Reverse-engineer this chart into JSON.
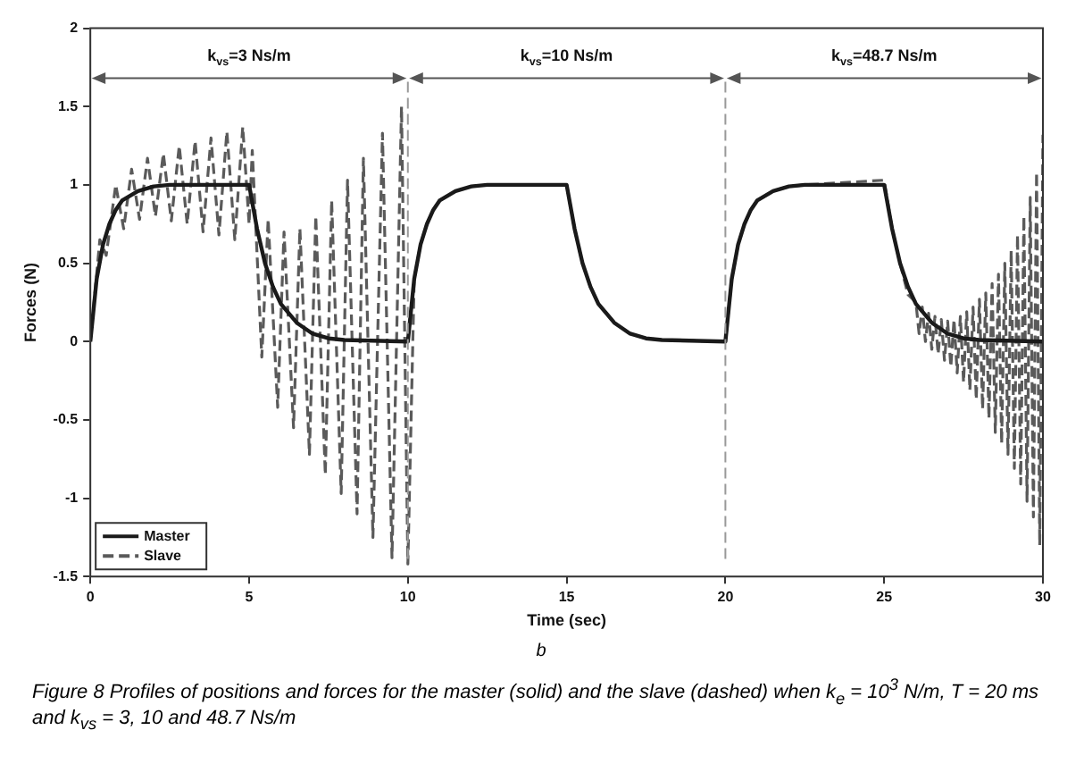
{
  "chart_data": {
    "type": "line",
    "xlabel": "Time (sec)",
    "ylabel": "Forces (N)",
    "xlim": [
      0,
      30
    ],
    "xticks": [
      0,
      5,
      10,
      15,
      20,
      25,
      30
    ],
    "ylim": [
      -1.5,
      2
    ],
    "yticks": [
      -1.5,
      -1,
      -0.5,
      0,
      0.5,
      1,
      1.5,
      2
    ],
    "grid": false,
    "legend": "bottom left",
    "marker": "none",
    "series": [
      {
        "name": "Master",
        "color": "#1a1a1a",
        "line_style": "solid",
        "x": [
          0,
          0.2,
          0.4,
          0.6,
          0.8,
          1,
          1.5,
          2,
          2.5,
          5,
          5.25,
          5.5,
          5.75,
          6,
          6.5,
          7,
          7.5,
          8,
          10,
          10.2,
          10.4,
          10.6,
          10.8,
          11,
          11.5,
          12,
          12.5,
          15,
          15.25,
          15.5,
          15.75,
          16,
          16.5,
          17,
          17.5,
          18,
          20,
          20.2,
          20.4,
          20.6,
          20.8,
          21,
          21.5,
          22,
          22.5,
          25,
          25.25,
          25.5,
          25.75,
          26,
          26.5,
          27,
          27.5,
          28,
          30
        ],
        "values": [
          0,
          0.4,
          0.62,
          0.75,
          0.84,
          0.9,
          0.96,
          0.99,
          1,
          1,
          0.72,
          0.5,
          0.35,
          0.24,
          0.12,
          0.05,
          0.02,
          0.01,
          0,
          0.4,
          0.62,
          0.75,
          0.84,
          0.9,
          0.96,
          0.99,
          1,
          1,
          0.72,
          0.5,
          0.35,
          0.24,
          0.12,
          0.05,
          0.02,
          0.01,
          0,
          0.4,
          0.62,
          0.75,
          0.84,
          0.9,
          0.96,
          0.99,
          1,
          1,
          0.72,
          0.5,
          0.35,
          0.24,
          0.12,
          0.05,
          0.02,
          0.01,
          0
        ]
      },
      {
        "name": "Slave",
        "color": "#5a5a5a",
        "line_style": "dashed",
        "x": [
          0,
          0.3,
          0.5,
          0.8,
          1.05,
          1.3,
          1.55,
          1.8,
          2.05,
          2.3,
          2.55,
          2.8,
          3.05,
          3.3,
          3.55,
          3.8,
          4.05,
          4.3,
          4.55,
          4.8,
          5,
          5.1,
          5.4,
          5.6,
          5.9,
          6.1,
          6.4,
          6.6,
          6.9,
          7.1,
          7.4,
          7.6,
          7.9,
          8.1,
          8.4,
          8.6,
          8.9,
          9.2,
          9.5,
          9.8,
          10,
          10.2,
          10.4,
          10.6,
          10.8,
          11,
          11.5,
          12,
          12.5,
          15,
          15.25,
          15.5,
          15.75,
          16,
          16.5,
          17,
          17.5,
          18,
          20,
          20.2,
          20.4,
          20.6,
          20.8,
          21,
          21.5,
          22,
          22.5,
          25,
          25.25,
          25.5,
          25.75,
          26,
          26.1,
          26.2,
          26.3,
          26.4,
          26.5,
          26.6,
          26.7,
          26.8,
          26.9,
          27,
          27.1,
          27.2,
          27.3,
          27.4,
          27.5,
          27.6,
          27.7,
          27.8,
          27.9,
          28,
          28.1,
          28.2,
          28.3,
          28.4,
          28.5,
          28.6,
          28.7,
          28.8,
          28.9,
          29,
          29.1,
          29.2,
          29.3,
          29.4,
          29.5,
          29.6,
          29.7,
          29.8,
          29.9,
          30
        ],
        "values": [
          0,
          0.65,
          0.55,
          1,
          0.72,
          1.1,
          0.78,
          1.17,
          0.8,
          1.2,
          0.77,
          1.25,
          0.75,
          1.28,
          0.7,
          1.3,
          0.68,
          1.34,
          0.65,
          1.37,
          0.75,
          1.22,
          -0.1,
          0.78,
          -0.42,
          0.7,
          -0.55,
          0.72,
          -0.72,
          0.8,
          -0.85,
          0.9,
          -0.97,
          1.03,
          -1.1,
          1.17,
          -1.25,
          1.33,
          -1.38,
          1.5,
          -1.42,
          0.4,
          0.62,
          0.75,
          0.84,
          0.9,
          0.96,
          0.99,
          1,
          1,
          0.72,
          0.5,
          0.35,
          0.24,
          0.12,
          0.05,
          0.02,
          0.01,
          0,
          0.4,
          0.62,
          0.75,
          0.84,
          0.9,
          0.96,
          0.99,
          1,
          1.03,
          0.72,
          0.5,
          0.3,
          0.25,
          0.05,
          0.22,
          0,
          0.18,
          -0.05,
          0.16,
          -0.08,
          0.14,
          -0.12,
          0.13,
          -0.16,
          0.14,
          -0.2,
          0.16,
          -0.26,
          0.19,
          -0.31,
          0.22,
          -0.37,
          0.27,
          -0.43,
          0.31,
          -0.49,
          0.37,
          -0.58,
          0.43,
          -0.65,
          0.5,
          -0.72,
          0.58,
          -0.81,
          0.68,
          -0.91,
          0.8,
          -1.02,
          0.92,
          -1.12,
          1.08,
          -1.3,
          1.32
        ]
      }
    ],
    "ref_lines": [
      {
        "axis": "x",
        "value": 10,
        "color": "#999999",
        "line_style": "dashed"
      },
      {
        "axis": "x",
        "value": 20,
        "color": "#999999",
        "line_style": "dashed"
      }
    ],
    "annotations": [
      "k$_{vs}$=3 Ns/m",
      "k$_{vs}$=10 Ns/m",
      "k$_{vs}$=48.7 Ns/m",
      "b",
      "Figure 8 Profiles of positions and forces for the master (solid) and the slave (dashed) when k$_{e}$ = 10$^{3}$ N/m, T = 20 ms and k$_{vs}$ = 3, 10 and 48.7 Ns/m"
    ]
  }
}
